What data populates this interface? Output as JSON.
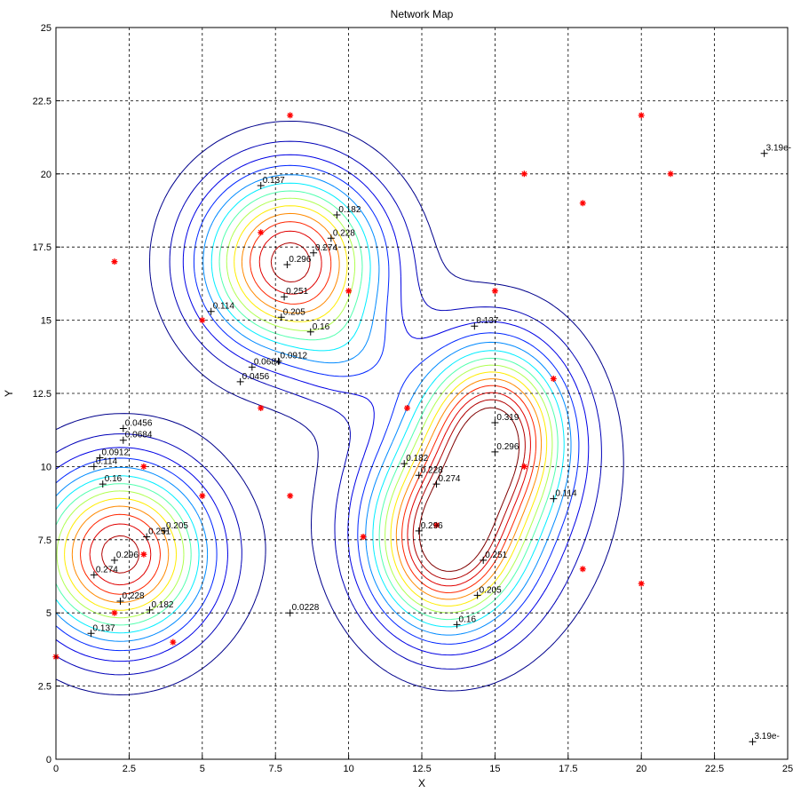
{
  "chart_data": {
    "type": "contour",
    "title": "Network Map",
    "xlabel": "X",
    "ylabel": "Y",
    "xlim": [
      0,
      25
    ],
    "ylim": [
      0,
      25
    ],
    "xticks": [
      "0",
      "2.5",
      "5",
      "7.5",
      "10",
      "12.5",
      "15",
      "17.5",
      "20",
      "22.5",
      "25"
    ],
    "yticks": [
      "0",
      "2.5",
      "5",
      "7.5",
      "10",
      "12.5",
      "15",
      "17.5",
      "20",
      "22.5",
      "25"
    ],
    "grid": true,
    "levels": [
      0.0228,
      0.0456,
      0.0684,
      0.0912,
      0.114,
      0.137,
      0.16,
      0.182,
      0.205,
      0.228,
      0.251,
      0.274,
      0.296,
      0.319
    ],
    "field_peaks": [
      {
        "x": 8,
        "y": 17,
        "amp": 0.31,
        "sx": 2.1,
        "sy": 2.1
      },
      {
        "x": 2.2,
        "y": 7,
        "amp": 0.31,
        "sx": 2.1,
        "sy": 2.1
      },
      {
        "x": 15,
        "y": 11.2,
        "amp": 0.26,
        "sx": 1.6,
        "sy": 2.0
      },
      {
        "x": 13.3,
        "y": 7.3,
        "amp": 0.27,
        "sx": 1.7,
        "sy": 2.0
      },
      {
        "x": 14.2,
        "y": 9.3,
        "amp": 0.1,
        "sx": 2.8,
        "sy": 3.3
      },
      {
        "x": 10,
        "y": 13.8,
        "amp": 0.045,
        "sx": 1.3,
        "sy": 1.2
      },
      {
        "x": 25,
        "y": 25,
        "amp": 0.02,
        "sx": 4.5,
        "sy": 4.5
      }
    ],
    "points": [
      {
        "x": 8,
        "y": 22
      },
      {
        "x": 2,
        "y": 17
      },
      {
        "x": 7,
        "y": 18
      },
      {
        "x": 10,
        "y": 16
      },
      {
        "x": 5,
        "y": 15
      },
      {
        "x": 7,
        "y": 12
      },
      {
        "x": 3,
        "y": 10
      },
      {
        "x": 5,
        "y": 9
      },
      {
        "x": 8,
        "y": 9
      },
      {
        "x": 3,
        "y": 7
      },
      {
        "x": 2,
        "y": 5
      },
      {
        "x": 4,
        "y": 4
      },
      {
        "x": 0,
        "y": 3.5
      },
      {
        "x": 10.5,
        "y": 7.6
      },
      {
        "x": 12,
        "y": 12
      },
      {
        "x": 15,
        "y": 16
      },
      {
        "x": 17,
        "y": 13
      },
      {
        "x": 16,
        "y": 10
      },
      {
        "x": 18,
        "y": 6.5
      },
      {
        "x": 20,
        "y": 6
      },
      {
        "x": 16,
        "y": 20
      },
      {
        "x": 18,
        "y": 19
      },
      {
        "x": 20,
        "y": 22
      },
      {
        "x": 21,
        "y": 20
      },
      {
        "x": 13,
        "y": 8
      }
    ],
    "contour_labels": [
      {
        "x": 7.0,
        "y": 19.6,
        "text": "0.137"
      },
      {
        "x": 9.6,
        "y": 18.6,
        "text": "0.182"
      },
      {
        "x": 9.4,
        "y": 17.8,
        "text": "0.228"
      },
      {
        "x": 8.8,
        "y": 17.3,
        "text": "0.274"
      },
      {
        "x": 7.9,
        "y": 16.9,
        "text": "0.296"
      },
      {
        "x": 7.8,
        "y": 15.8,
        "text": "0.251"
      },
      {
        "x": 7.7,
        "y": 15.1,
        "text": "0.205"
      },
      {
        "x": 5.3,
        "y": 15.3,
        "text": "0.114"
      },
      {
        "x": 8.7,
        "y": 14.6,
        "text": "0.16"
      },
      {
        "x": 6.7,
        "y": 13.4,
        "text": "0.0684"
      },
      {
        "x": 7.6,
        "y": 13.6,
        "text": "0.0912"
      },
      {
        "x": 6.3,
        "y": 12.9,
        "text": "0.0456"
      },
      {
        "x": 14.3,
        "y": 14.8,
        "text": "0.137"
      },
      {
        "x": 15.0,
        "y": 11.5,
        "text": "0.319"
      },
      {
        "x": 15.0,
        "y": 10.5,
        "text": "0.296"
      },
      {
        "x": 11.9,
        "y": 10.1,
        "text": "0.182"
      },
      {
        "x": 12.4,
        "y": 9.7,
        "text": "0.228"
      },
      {
        "x": 13.0,
        "y": 9.4,
        "text": "0.274"
      },
      {
        "x": 17.0,
        "y": 8.9,
        "text": "0.114"
      },
      {
        "x": 12.4,
        "y": 7.8,
        "text": "0.296"
      },
      {
        "x": 14.6,
        "y": 6.8,
        "text": "0.251"
      },
      {
        "x": 14.4,
        "y": 5.6,
        "text": "0.205"
      },
      {
        "x": 13.7,
        "y": 4.6,
        "text": "0.16"
      },
      {
        "x": 8.0,
        "y": 5.0,
        "text": "0.0228"
      },
      {
        "x": 2.3,
        "y": 11.3,
        "text": "0.0456"
      },
      {
        "x": 2.3,
        "y": 10.9,
        "text": "0.0684"
      },
      {
        "x": 1.5,
        "y": 10.3,
        "text": "0.0912"
      },
      {
        "x": 1.3,
        "y": 10.0,
        "text": "0.114"
      },
      {
        "x": 1.6,
        "y": 9.4,
        "text": "0.16"
      },
      {
        "x": 3.1,
        "y": 7.6,
        "text": "0.251"
      },
      {
        "x": 3.7,
        "y": 7.8,
        "text": "0.205"
      },
      {
        "x": 2.0,
        "y": 6.8,
        "text": "0.296"
      },
      {
        "x": 1.3,
        "y": 6.3,
        "text": "0.274"
      },
      {
        "x": 2.2,
        "y": 5.4,
        "text": "0.228"
      },
      {
        "x": 3.2,
        "y": 5.1,
        "text": "0.182"
      },
      {
        "x": 1.2,
        "y": 4.3,
        "text": "0.137"
      },
      {
        "x": 24.2,
        "y": 20.7,
        "text": "3.19e-"
      },
      {
        "x": 23.8,
        "y": 0.6,
        "text": "3.19e-"
      }
    ]
  }
}
